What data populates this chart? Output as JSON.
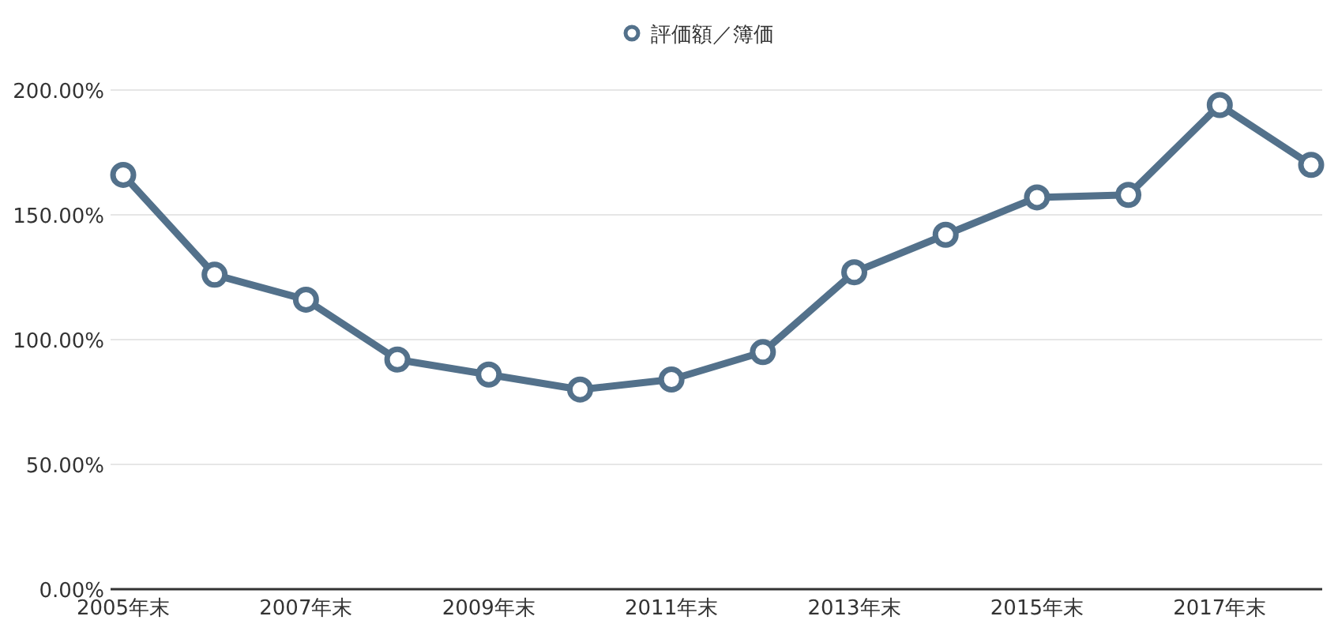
{
  "chart_data": {
    "type": "line",
    "categories": [
      "2005年末",
      null,
      "2007年末",
      null,
      "2009年末",
      null,
      "2011年末",
      null,
      "2013年末",
      null,
      "2015年末",
      null,
      "2017年末",
      null
    ],
    "series": [
      {
        "name": "評価額／簿価",
        "color": "#53718b",
        "values": [
          166,
          126,
          116,
          92,
          86,
          80,
          84,
          95,
          127,
          142,
          157,
          158,
          194,
          170
        ]
      }
    ],
    "ylim": [
      0,
      200
    ],
    "yticks": [
      {
        "value": 0,
        "label": "0.00%"
      },
      {
        "value": 50,
        "label": "50.00%"
      },
      {
        "value": 100,
        "label": "100.00%"
      },
      {
        "value": 150,
        "label": "150.00%"
      },
      {
        "value": 200,
        "label": "200.00%"
      }
    ],
    "grid": "y",
    "legend": "top",
    "marker": "circle",
    "line_style": "solid"
  }
}
